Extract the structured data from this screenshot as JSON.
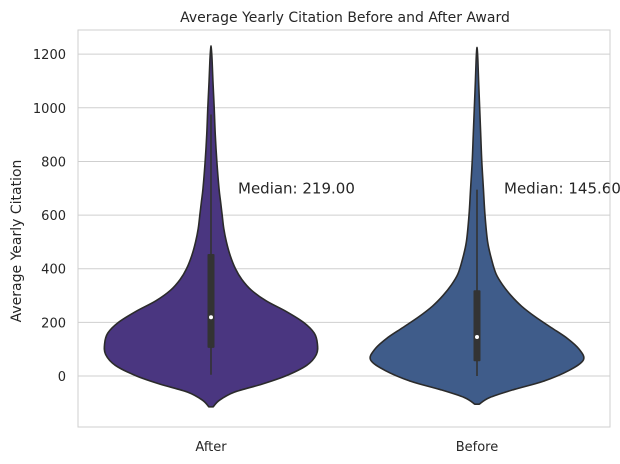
{
  "chart_data": {
    "type": "violin",
    "title": "Average Yearly Citation Before and After Award",
    "xlabel": "",
    "ylabel": "Average Yearly Citation",
    "categories": [
      "After",
      "Before"
    ],
    "ylim": [
      -190,
      1290
    ],
    "yticks": [
      0,
      200,
      400,
      600,
      800,
      1000,
      1200
    ],
    "grid": true,
    "colors": {
      "After": "#4a3680",
      "Before": "#3f5c8a",
      "outline": "#2b2b2b",
      "grid": "#cfcfcf",
      "box": "#333333"
    },
    "series": [
      {
        "category": "After",
        "median": 219.0,
        "q1": 105,
        "q3": 455,
        "whisker_low": 5,
        "whisker_high": 975,
        "range": [
          -115,
          1225
        ],
        "density_half_width_relative": [
          [
            -115,
            0.02
          ],
          [
            -90,
            0.08
          ],
          [
            -60,
            0.22
          ],
          [
            -30,
            0.48
          ],
          [
            0,
            0.7
          ],
          [
            40,
            0.9
          ],
          [
            80,
            0.99
          ],
          [
            120,
            1.0
          ],
          [
            160,
            0.97
          ],
          [
            200,
            0.87
          ],
          [
            240,
            0.71
          ],
          [
            280,
            0.52
          ],
          [
            320,
            0.38
          ],
          [
            360,
            0.29
          ],
          [
            400,
            0.23
          ],
          [
            450,
            0.18
          ],
          [
            500,
            0.145
          ],
          [
            550,
            0.12
          ],
          [
            600,
            0.105
          ],
          [
            650,
            0.09
          ],
          [
            700,
            0.075
          ],
          [
            800,
            0.055
          ],
          [
            900,
            0.04
          ],
          [
            1000,
            0.03
          ],
          [
            1100,
            0.018
          ],
          [
            1180,
            0.01
          ],
          [
            1225,
            0.002
          ]
        ],
        "annotation": "Median: 219.00"
      },
      {
        "category": "Before",
        "median": 145.6,
        "q1": 55,
        "q3": 320,
        "whisker_low": 0,
        "whisker_high": 695,
        "range": [
          -105,
          1220
        ],
        "density_half_width_relative": [
          [
            -105,
            0.02
          ],
          [
            -80,
            0.12
          ],
          [
            -50,
            0.35
          ],
          [
            -20,
            0.62
          ],
          [
            20,
            0.86
          ],
          [
            60,
            1.0
          ],
          [
            100,
            0.96
          ],
          [
            140,
            0.85
          ],
          [
            180,
            0.7
          ],
          [
            220,
            0.55
          ],
          [
            260,
            0.42
          ],
          [
            300,
            0.32
          ],
          [
            340,
            0.24
          ],
          [
            380,
            0.18
          ],
          [
            430,
            0.14
          ],
          [
            500,
            0.1
          ],
          [
            600,
            0.075
          ],
          [
            700,
            0.06
          ],
          [
            800,
            0.045
          ],
          [
            900,
            0.035
          ],
          [
            1000,
            0.025
          ],
          [
            1100,
            0.015
          ],
          [
            1180,
            0.008
          ],
          [
            1220,
            0.002
          ]
        ],
        "annotation": "Median: 145.60"
      }
    ]
  }
}
